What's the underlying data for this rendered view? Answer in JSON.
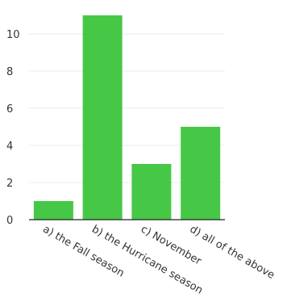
{
  "colors": {
    "bar": "#46c846",
    "grid": "#ebebeb",
    "axis": "#222222",
    "text": "#333333",
    "background": "#ffffff"
  },
  "chart_data": {
    "type": "bar",
    "title": "",
    "xlabel": "",
    "ylabel": "",
    "categories": [
      "a) the Fall season",
      "b) the Hurricane season",
      "c) November",
      "d) all of the above"
    ],
    "values": [
      1,
      11,
      3,
      5
    ],
    "ylim": [
      0,
      11
    ],
    "yticks": [
      0,
      2,
      4,
      6,
      8,
      10
    ],
    "grid": true,
    "legend": "none"
  }
}
